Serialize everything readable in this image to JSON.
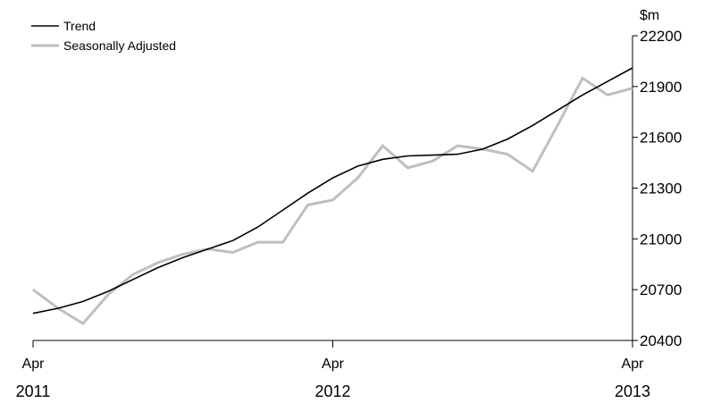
{
  "chart_data": {
    "type": "line",
    "unit": "$m",
    "x": [
      "2011-04",
      "2011-05",
      "2011-06",
      "2011-07",
      "2011-08",
      "2011-09",
      "2011-10",
      "2011-11",
      "2011-12",
      "2012-01",
      "2012-02",
      "2012-03",
      "2012-04",
      "2012-05",
      "2012-06",
      "2012-07",
      "2012-08",
      "2012-09",
      "2012-10",
      "2012-11",
      "2012-12",
      "2013-01",
      "2013-02",
      "2013-03",
      "2013-04"
    ],
    "x_ticks": [
      {
        "value": "2011-04",
        "month": "Apr",
        "year": "2011"
      },
      {
        "value": "2012-04",
        "month": "Apr",
        "year": "2012"
      },
      {
        "value": "2013-04",
        "month": "Apr",
        "year": "2013"
      }
    ],
    "ylim": [
      20400,
      22200
    ],
    "yticks": [
      20400,
      20700,
      21000,
      21300,
      21600,
      21900,
      22200
    ],
    "grid": false,
    "legend_position": "top-left",
    "series": [
      {
        "name": "Trend",
        "color": "#000000",
        "values": [
          20560,
          20590,
          20630,
          20690,
          20760,
          20830,
          20890,
          20940,
          20990,
          21070,
          21170,
          21270,
          21360,
          21430,
          21470,
          21490,
          21495,
          21500,
          21530,
          21590,
          21670,
          21760,
          21850,
          21930,
          22010
        ]
      },
      {
        "name": "Seasonally Adjusted",
        "color": "#bfbfbf",
        "values": [
          20700,
          20590,
          20500,
          20670,
          20790,
          20860,
          20910,
          20940,
          20920,
          20980,
          20980,
          21200,
          21230,
          21360,
          21550,
          21420,
          21460,
          21550,
          21530,
          21500,
          21400,
          21670,
          21950,
          21850,
          21890
        ]
      }
    ]
  }
}
